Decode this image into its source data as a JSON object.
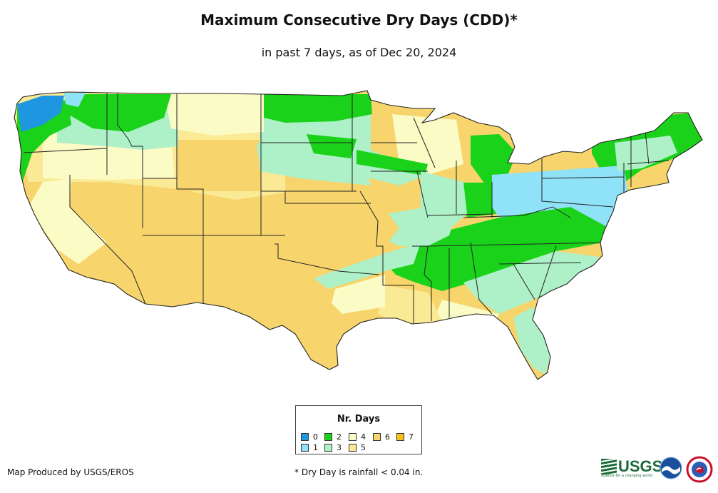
{
  "header": {
    "title": "Maximum Consecutive Dry Days (CDD)*",
    "subtitle": "in past 7 days, as of Dec 20, 2024"
  },
  "legend": {
    "title": "Nr. Days",
    "items": [
      {
        "label": "0",
        "color": "#1f97e0"
      },
      {
        "label": "1",
        "color": "#8fe2f7"
      },
      {
        "label": "2",
        "color": "#19d219"
      },
      {
        "label": "3",
        "color": "#aef0c8"
      },
      {
        "label": "4",
        "color": "#fbfbc6"
      },
      {
        "label": "5",
        "color": "#fbea95"
      },
      {
        "label": "6",
        "color": "#f7d56c"
      },
      {
        "label": "7",
        "color": "#f6c21a"
      }
    ]
  },
  "footer": {
    "credit": "Map Produced by USGS/EROS",
    "footnote": "* Dry Day is rainfall < 0.04 in.",
    "usgs_logo_text": "USGS",
    "usgs_tagline": "science for a changing world"
  },
  "logos": [
    "usgs-logo",
    "noaa-logo",
    "nws-logo"
  ],
  "colors": {
    "state_border": "#222222",
    "page_background": "#ffffff"
  }
}
